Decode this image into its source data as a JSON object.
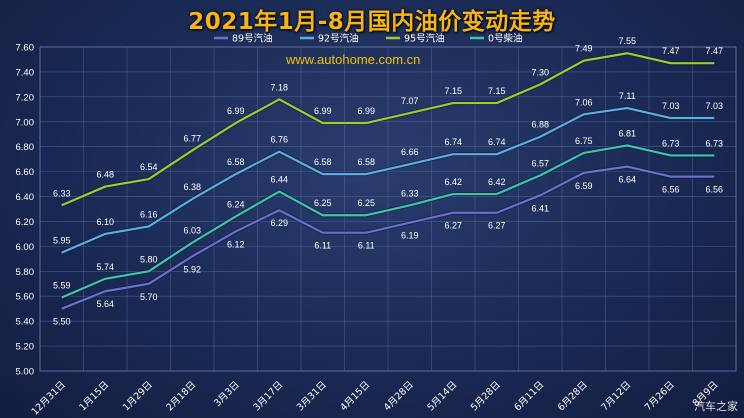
{
  "chart_data": {
    "type": "line",
    "title": "2021年1月-8月国内油价变动走势",
    "watermark": "www.autohome.com.cn",
    "source_mark": "汽车之家",
    "categories": [
      "12月31日",
      "1月15日",
      "1月29日",
      "2月18日",
      "3月3日",
      "3月17日",
      "3月31日",
      "4月15日",
      "4月28日",
      "5月14日",
      "5月28日",
      "6月11日",
      "6月28日",
      "7月12日",
      "7月26日",
      "8月9日"
    ],
    "ylim": [
      5.0,
      7.6
    ],
    "yticks": [
      "5.00",
      "5.20",
      "5.40",
      "5.60",
      "5.80",
      "6.00",
      "6.20",
      "6.40",
      "6.60",
      "6.80",
      "7.00",
      "7.20",
      "7.40",
      "7.60"
    ],
    "grid": true,
    "legend_position": "top",
    "series": [
      {
        "name": "89号汽油",
        "color": "#6b6fd0",
        "values": [
          5.5,
          5.64,
          5.7,
          5.92,
          6.12,
          6.29,
          6.11,
          6.11,
          6.19,
          6.27,
          6.27,
          6.41,
          6.59,
          6.64,
          6.56,
          6.56
        ],
        "labels": [
          "5.50",
          "5.64",
          "5.70",
          "5.92",
          "6.12",
          "6.29",
          "6.11",
          "6.11",
          "6.19",
          "6.27",
          "6.27",
          "6.41",
          "6.59",
          "6.64",
          "6.56",
          "6.56"
        ]
      },
      {
        "name": "92号汽油",
        "color": "#5aaee0",
        "values": [
          5.95,
          6.1,
          6.16,
          6.38,
          6.58,
          6.76,
          6.58,
          6.58,
          6.66,
          6.74,
          6.74,
          6.88,
          7.06,
          7.11,
          7.03,
          7.03
        ],
        "labels": [
          "5.95",
          "6.10",
          "6.16",
          "6.38",
          "6.58",
          "6.76",
          "6.58",
          "6.58",
          "6.66",
          "6.74",
          "6.74",
          "6.88",
          "7.06",
          "7.11",
          "7.03",
          "7.03"
        ]
      },
      {
        "name": "95号汽油",
        "color": "#9acd32",
        "values": [
          6.33,
          6.48,
          6.54,
          6.77,
          6.99,
          7.18,
          6.99,
          6.99,
          7.07,
          7.15,
          7.15,
          7.3,
          7.49,
          7.55,
          7.47,
          7.47
        ],
        "labels": [
          "6.33",
          "6.48",
          "6.54",
          "6.77",
          "6.99",
          "7.18",
          "6.99",
          "6.99",
          "7.07",
          "7.15",
          "7.15",
          "7.30",
          "7.49",
          "7.55",
          "7.47",
          "7.47"
        ]
      },
      {
        "name": "0号柴油",
        "color": "#3cc7a8",
        "values": [
          5.59,
          5.74,
          5.8,
          6.03,
          6.24,
          6.44,
          6.25,
          6.25,
          6.33,
          6.42,
          6.42,
          6.57,
          6.75,
          6.81,
          6.73,
          6.73
        ],
        "labels": [
          "5.59",
          "5.74",
          "5.80",
          "6.03",
          "6.24",
          "6.44",
          "6.25",
          "6.25",
          "6.33",
          "6.42",
          "6.42",
          "6.57",
          "6.75",
          "6.81",
          "6.73",
          "6.73"
        ]
      }
    ]
  }
}
